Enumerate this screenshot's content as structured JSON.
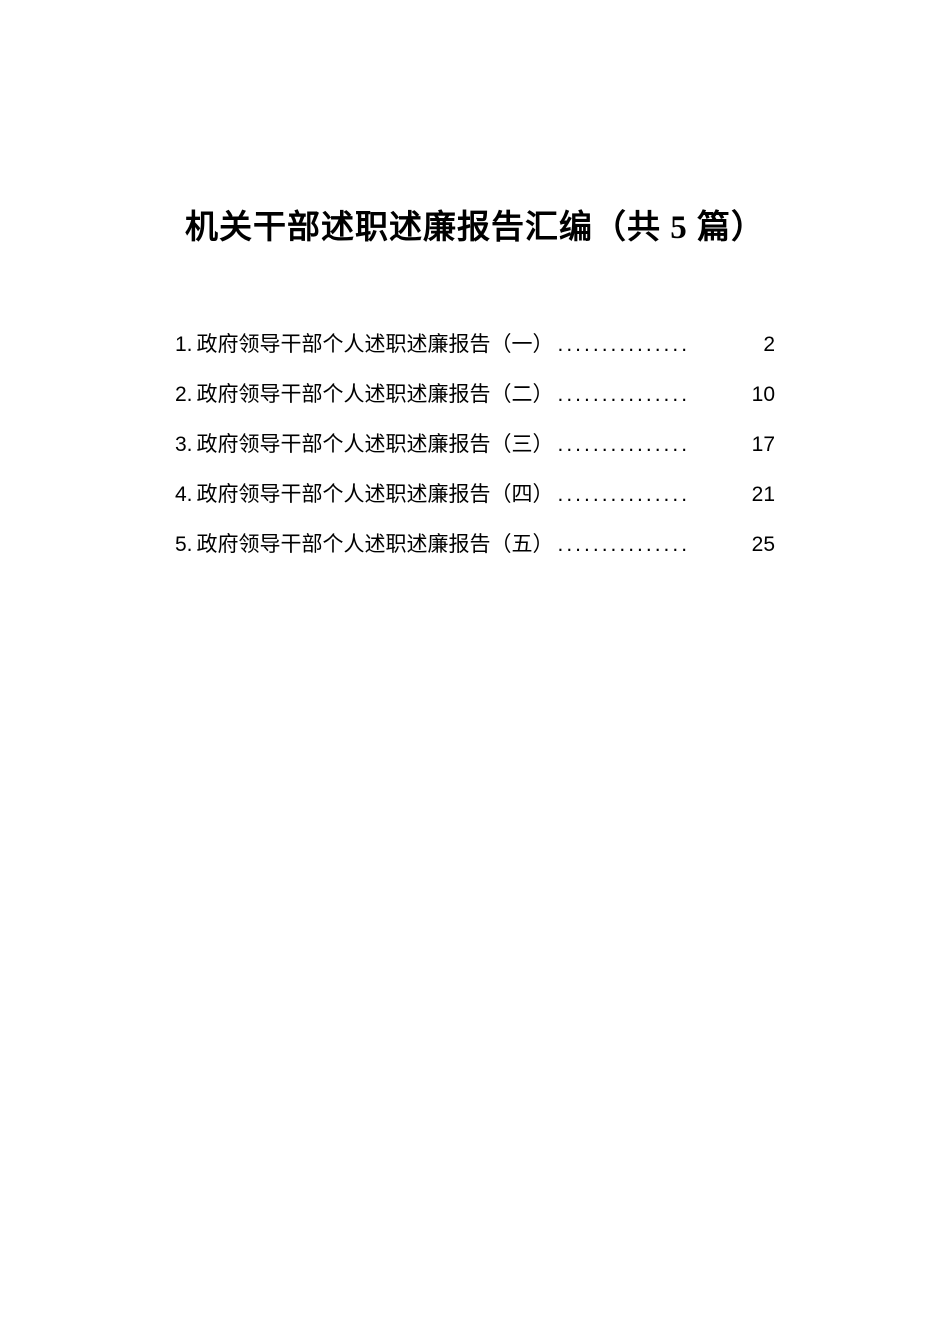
{
  "title": "机关干部述职述廉报告汇编（共 5 篇）",
  "toc": {
    "items": [
      {
        "number": "1.",
        "text": "政府领导干部个人述职述廉报告（一）",
        "page": "2"
      },
      {
        "number": "2.",
        "text": "政府领导干部个人述职述廉报告（二）",
        "page": "10"
      },
      {
        "number": "3.",
        "text": "政府领导干部个人述职述廉报告（三）",
        "page": "17"
      },
      {
        "number": "4.",
        "text": "政府领导干部个人述职述廉报告（四）",
        "page": "21"
      },
      {
        "number": "5.",
        "text": "政府领导干部个人述职述廉报告（五）",
        "page": "25"
      }
    ]
  },
  "dots_fill": "..............."
}
